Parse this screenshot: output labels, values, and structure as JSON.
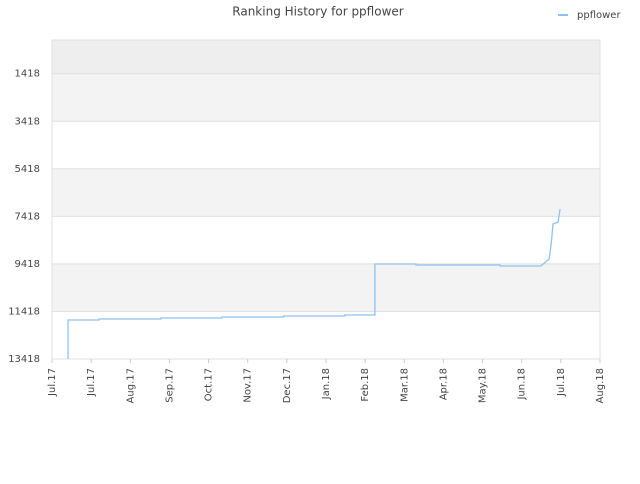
{
  "chart_data": {
    "type": "line",
    "title": "Ranking History for ppflower",
    "x_unit_note_free": null,
    "xlim": [
      0,
      14
    ],
    "xticks": [
      {
        "value": 0,
        "label": "Jul.17"
      },
      {
        "value": 1,
        "label": "Jul.17"
      },
      {
        "value": 2,
        "label": "Aug.17"
      },
      {
        "value": 3,
        "label": "Sep.17"
      },
      {
        "value": 4,
        "label": "Oct.17"
      },
      {
        "value": 5,
        "label": "Nov.17"
      },
      {
        "value": 6,
        "label": "Dec.17"
      },
      {
        "value": 7,
        "label": "Jan.18"
      },
      {
        "value": 8,
        "label": "Feb.18"
      },
      {
        "value": 9,
        "label": "Mar.18"
      },
      {
        "value": 10,
        "label": "Apr.18"
      },
      {
        "value": 11,
        "label": "May.18"
      },
      {
        "value": 12,
        "label": "Jun.18"
      },
      {
        "value": 13,
        "label": "Jul.18"
      },
      {
        "value": 14,
        "label": "Aug.18"
      }
    ],
    "ylim": [
      13418,
      0
    ],
    "yticks": [
      1418,
      3418,
      5418,
      7418,
      9418,
      11418,
      13418
    ],
    "legend": "top-right",
    "series": [
      {
        "name": "ppflower",
        "color": "#8ec2ef",
        "x": [
          0.41,
          0.41,
          1.2,
          1.2,
          2.78,
          2.78,
          4.34,
          4.34,
          5.92,
          5.92,
          7.48,
          7.48,
          8.25,
          8.25,
          9.3,
          9.3,
          11.45,
          11.45,
          12.49,
          12.7,
          12.75,
          12.8,
          12.93,
          12.98
        ],
        "values": [
          13418,
          11777,
          11777,
          11735,
          11735,
          11693,
          11693,
          11651,
          11651,
          11609,
          11609,
          11567,
          11567,
          9422,
          9422,
          9464,
          9464,
          9506,
          9506,
          9212,
          8623,
          7739,
          7655,
          7109
        ]
      }
    ]
  }
}
